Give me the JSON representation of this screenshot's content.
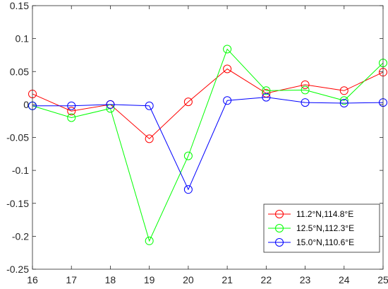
{
  "chart_data": {
    "type": "line",
    "title": "",
    "xlabel": "",
    "ylabel": "",
    "x": [
      16,
      17,
      18,
      19,
      20,
      21,
      22,
      23,
      24,
      25
    ],
    "xlim": [
      16,
      25
    ],
    "ylim": [
      -0.25,
      0.15
    ],
    "xticks": [
      16,
      17,
      18,
      19,
      20,
      21,
      22,
      23,
      24,
      25
    ],
    "yticks": [
      0.15,
      0.1,
      0.05,
      0,
      -0.05,
      -0.1,
      -0.15,
      -0.2,
      -0.25
    ],
    "ytick_labels": [
      "0.15",
      "0.1",
      "0.05",
      "0",
      "-0.05",
      "-0.1",
      "-0.15",
      "-0.2",
      "-0.25"
    ],
    "grid": false,
    "legend_position": "bottom-right",
    "marker": "circle",
    "series": [
      {
        "name": "11.2°N,114.8°E",
        "color": "#ff0000",
        "values": [
          0.016,
          -0.01,
          0.0,
          -0.052,
          0.004,
          0.054,
          0.017,
          0.03,
          0.021,
          0.049
        ]
      },
      {
        "name": "12.5°N,112.3°E",
        "color": "#00ff00",
        "values": [
          -0.002,
          -0.02,
          -0.006,
          -0.207,
          -0.078,
          0.084,
          0.021,
          0.022,
          0.006,
          0.063
        ]
      },
      {
        "name": "15.0°N,110.6°E",
        "color": "#0000ff",
        "values": [
          -0.002,
          -0.002,
          0.0,
          -0.002,
          -0.129,
          0.006,
          0.011,
          0.003,
          0.002,
          0.003
        ]
      }
    ]
  }
}
